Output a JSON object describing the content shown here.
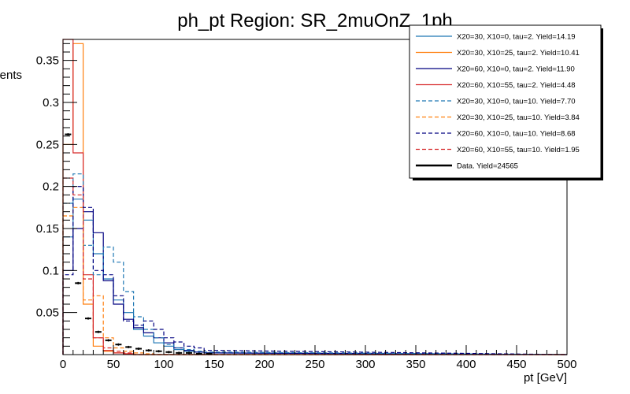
{
  "chart_data": {
    "type": "line",
    "title": "ph_pt Region: SR_2muOnZ_1ph",
    "xlabel": "pt [GeV]",
    "ylabel": "Events",
    "xlim": [
      0,
      500
    ],
    "ylim": [
      0,
      0.375
    ],
    "xticks": [
      0,
      50,
      100,
      150,
      200,
      250,
      300,
      350,
      400,
      450,
      500
    ],
    "yticks": [
      0.05,
      0.1,
      0.15,
      0.2,
      0.25,
      0.3,
      0.35
    ],
    "bin_width": 10,
    "x": [
      5,
      15,
      25,
      35,
      45,
      55,
      65,
      75,
      85,
      95,
      105,
      115,
      125,
      135,
      145
    ],
    "legend_position": "top-right",
    "series": [
      {
        "name": "X20=30, X10=0, tau=2. Yield=14.19",
        "color": "#1f77b4",
        "dash": false,
        "values": [
          0.14,
          0.185,
          0.16,
          0.12,
          0.09,
          0.065,
          0.05,
          0.03,
          0.022,
          0.014,
          0.01,
          0.006,
          0.004,
          0.003,
          0.002
        ]
      },
      {
        "name": "X20=30, X10=25, tau=2. Yield=10.41",
        "color": "#ff7f0e",
        "dash": false,
        "values": [
          0.25,
          0.37,
          0.06,
          0.01,
          0.004,
          0.002,
          0.001,
          0,
          0,
          0,
          0,
          0,
          0,
          0,
          0
        ]
      },
      {
        "name": "X20=60, X10=0, tau=2. Yield=11.90",
        "color": "#000080",
        "dash": false,
        "values": [
          0.1,
          0.15,
          0.17,
          0.145,
          0.088,
          0.06,
          0.042,
          0.032,
          0.026,
          0.02,
          0.014,
          0.008,
          0.005,
          0.003,
          0.002
        ]
      },
      {
        "name": "X20=60, X10=55, tau=2. Yield=4.48",
        "color": "#d62728",
        "dash": false,
        "values": [
          0.375,
          0.24,
          0.095,
          0.02,
          0.005,
          0.002,
          0.001,
          0,
          0,
          0,
          0,
          0,
          0,
          0,
          0
        ]
      },
      {
        "name": "X20=30, X10=0, tau=10. Yield=7.70",
        "color": "#1f77b4",
        "dash": true,
        "values": [
          0.18,
          0.215,
          0.13,
          0.095,
          0.128,
          0.11,
          0.075,
          0.045,
          0.03,
          0.02,
          0.012,
          0.008,
          0.006,
          0.004,
          0.003
        ]
      },
      {
        "name": "X20=30, X10=25, tau=10. Yield=3.84",
        "color": "#ff7f0e",
        "dash": true,
        "values": [
          0.165,
          0.175,
          0.065,
          0.07,
          0.02,
          0.008,
          0.004,
          0.002,
          0.001,
          0,
          0,
          0,
          0,
          0,
          0
        ]
      },
      {
        "name": "X20=60, X10=0, tau=10. Yield=8.68",
        "color": "#000080",
        "dash": true,
        "values": [
          0.095,
          0.2,
          0.175,
          0.1,
          0.095,
          0.07,
          0.04,
          0.035,
          0.04,
          0.03,
          0.02,
          0.015,
          0.01,
          0.008,
          0.005
        ]
      },
      {
        "name": "X20=60, X10=55, tau=10. Yield=1.95",
        "color": "#d62728",
        "dash": true,
        "values": [
          0.21,
          0.19,
          0.09,
          0.02,
          0.008,
          0.004,
          0.002,
          0,
          0,
          0,
          0,
          0,
          0,
          0,
          0
        ]
      },
      {
        "name": "Data. Yield=24565",
        "color": "#000000",
        "dash": false,
        "points": true,
        "values": [
          0.262,
          0.085,
          0.043,
          0.027,
          0.017,
          0.012,
          0.009,
          0.007,
          0.005,
          0.004,
          0.003,
          0.002,
          0.002,
          0.001,
          0.001
        ]
      }
    ]
  }
}
